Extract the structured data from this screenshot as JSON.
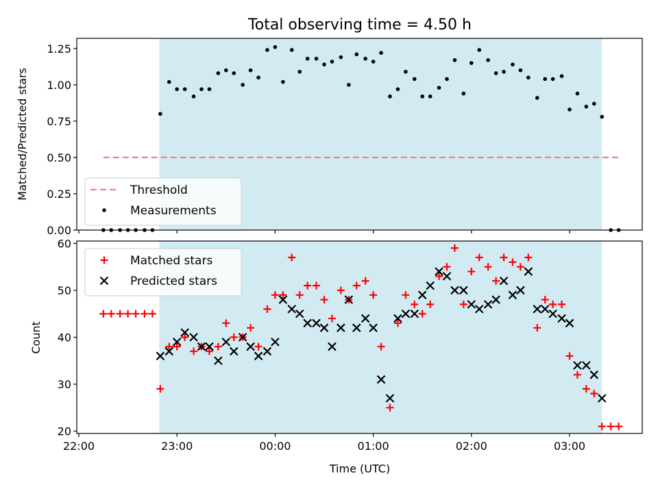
{
  "chart_data": {
    "type": "scatter",
    "title": "Total observing time = 4.50 h",
    "xlabel": "Time (UTC)",
    "x_tick_labels": [
      "22:00",
      "23:00",
      "00:00",
      "01:00",
      "02:00",
      "03:00"
    ],
    "shaded_region": {
      "start_hours": 0.82,
      "end_hours": 5.33,
      "color": "#add8e6"
    },
    "panels": [
      {
        "id": "top",
        "ylabel": "Matched/Predicted stars",
        "ylim": [
          0.0,
          1.32
        ],
        "yticks": [
          0.0,
          0.25,
          0.5,
          0.75,
          1.0,
          1.25
        ],
        "ytick_labels": [
          "0.00",
          "0.25",
          "0.50",
          "0.75",
          "1.00",
          "1.25"
        ],
        "legend": {
          "placement": "lower-left",
          "entries": [
            "Threshold",
            "Measurements"
          ]
        },
        "threshold": {
          "name": "Threshold",
          "value": 0.5,
          "x_range_hours": [
            0.25,
            5.5
          ],
          "color": "#f08080"
        },
        "series": [
          {
            "name": "Measurements",
            "color": "#000000",
            "marker": "dot",
            "x_hours": [
              0.25,
              0.33,
              0.42,
              0.5,
              0.58,
              0.67,
              0.75,
              0.83,
              0.92,
              1.0,
              1.08,
              1.17,
              1.25,
              1.33,
              1.42,
              1.5,
              1.58,
              1.67,
              1.75,
              1.83,
              1.92,
              2.0,
              2.08,
              2.17,
              2.25,
              2.33,
              2.42,
              2.5,
              2.58,
              2.67,
              2.75,
              2.83,
              2.92,
              3.0,
              3.08,
              3.17,
              3.25,
              3.33,
              3.42,
              3.5,
              3.58,
              3.67,
              3.75,
              3.83,
              3.92,
              4.0,
              4.08,
              4.17,
              4.25,
              4.33,
              4.42,
              4.5,
              4.58,
              4.67,
              4.75,
              4.83,
              4.92,
              5.0,
              5.08,
              5.17,
              5.25,
              5.33,
              5.42,
              5.5
            ],
            "y": [
              0,
              0,
              0,
              0,
              0,
              0,
              0,
              0.8,
              1.02,
              0.97,
              0.97,
              0.92,
              0.97,
              0.97,
              1.08,
              1.1,
              1.08,
              1.0,
              1.1,
              1.05,
              1.24,
              1.26,
              1.02,
              1.24,
              1.09,
              1.18,
              1.18,
              1.14,
              1.16,
              1.19,
              1.0,
              1.21,
              1.18,
              1.16,
              1.22,
              0.92,
              0.97,
              1.09,
              1.04,
              0.92,
              0.92,
              0.98,
              1.04,
              1.17,
              0.94,
              1.15,
              1.24,
              1.17,
              1.08,
              1.09,
              1.14,
              1.1,
              1.05,
              0.91,
              1.04,
              1.04,
              1.06,
              0.83,
              0.94,
              0.85,
              0.87,
              0.78,
              0,
              0
            ]
          }
        ]
      },
      {
        "id": "bottom",
        "ylabel": "Count",
        "ylim": [
          19.5,
          60.5
        ],
        "yticks": [
          20,
          30,
          40,
          50,
          60
        ],
        "ytick_labels": [
          "20",
          "30",
          "40",
          "50",
          "60"
        ],
        "legend": {
          "placement": "upper-left",
          "entries": [
            "Matched stars",
            "Predicted stars"
          ]
        },
        "series": [
          {
            "name": "Matched stars",
            "color": "#ff0000",
            "marker": "plus",
            "x_hours": [
              0.25,
              0.33,
              0.42,
              0.5,
              0.58,
              0.67,
              0.75,
              0.83,
              0.92,
              1.0,
              1.08,
              1.17,
              1.25,
              1.33,
              1.42,
              1.5,
              1.58,
              1.67,
              1.75,
              1.83,
              1.92,
              2.0,
              2.08,
              2.17,
              2.25,
              2.33,
              2.42,
              2.5,
              2.58,
              2.67,
              2.75,
              2.83,
              2.92,
              3.0,
              3.08,
              3.17,
              3.25,
              3.33,
              3.42,
              3.5,
              3.58,
              3.67,
              3.75,
              3.83,
              3.92,
              4.0,
              4.08,
              4.17,
              4.25,
              4.33,
              4.42,
              4.5,
              4.58,
              4.67,
              4.75,
              4.83,
              4.92,
              5.0,
              5.08,
              5.17,
              5.25,
              5.33,
              5.42,
              5.5
            ],
            "y": [
              45,
              45,
              45,
              45,
              45,
              45,
              45,
              29,
              38,
              38,
              40,
              37,
              38,
              37,
              38,
              43,
              40,
              40,
              42,
              38,
              46,
              49,
              49,
              57,
              49,
              51,
              51,
              48,
              44,
              50,
              48,
              51,
              52,
              49,
              38,
              25,
              43,
              49,
              47,
              45,
              47,
              53,
              55,
              59,
              47,
              54,
              57,
              55,
              52,
              57,
              56,
              55,
              57,
              42,
              48,
              47,
              47,
              36,
              32,
              29,
              28,
              21,
              21,
              21
            ]
          },
          {
            "name": "Predicted stars",
            "color": "#000000",
            "marker": "cross",
            "x_hours": [
              0.83,
              0.92,
              1.0,
              1.08,
              1.17,
              1.25,
              1.33,
              1.42,
              1.5,
              1.58,
              1.67,
              1.75,
              1.83,
              1.92,
              2.0,
              2.08,
              2.17,
              2.25,
              2.33,
              2.42,
              2.5,
              2.58,
              2.67,
              2.75,
              2.83,
              2.92,
              3.0,
              3.08,
              3.17,
              3.25,
              3.33,
              3.42,
              3.5,
              3.58,
              3.67,
              3.75,
              3.83,
              3.92,
              4.0,
              4.08,
              4.17,
              4.25,
              4.33,
              4.42,
              4.5,
              4.58,
              4.67,
              4.75,
              4.83,
              4.92,
              5.0,
              5.08,
              5.17,
              5.25,
              5.33
            ],
            "y": [
              36,
              37,
              39,
              41,
              40,
              38,
              38,
              35,
              39,
              37,
              40,
              38,
              36,
              37,
              39,
              48,
              46,
              45,
              43,
              43,
              42,
              38,
              42,
              48,
              42,
              44,
              42,
              31,
              27,
              44,
              45,
              45,
              49,
              51,
              54,
              53,
              50,
              50,
              47,
              46,
              47,
              48,
              52,
              49,
              50,
              54,
              46,
              46,
              45,
              44,
              43,
              34,
              34,
              32,
              27
            ]
          }
        ]
      }
    ]
  }
}
